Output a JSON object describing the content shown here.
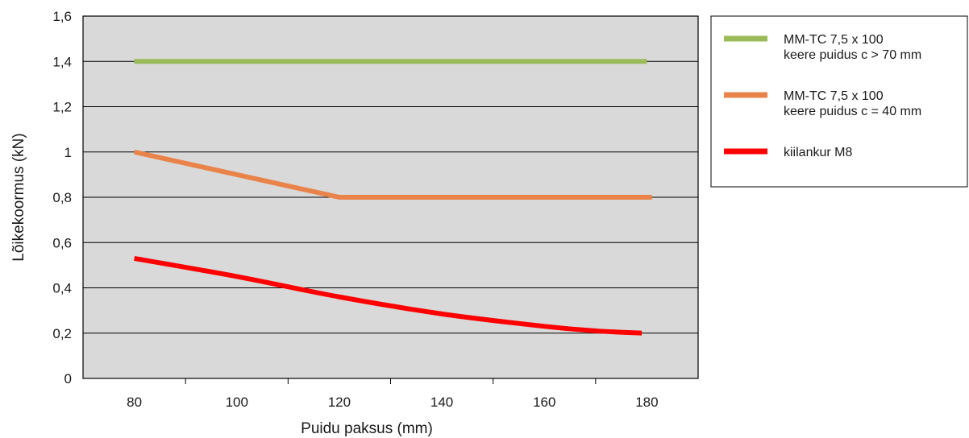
{
  "chart_data": {
    "type": "line",
    "xlabel": "Puidu paksus (mm)",
    "ylabel": "Lõikekoormus (kN)",
    "xlim": [
      70,
      190
    ],
    "ylim": [
      0,
      1.6
    ],
    "x_ticks": [
      "80",
      "100",
      "120",
      "140",
      "160",
      "180"
    ],
    "y_ticks": [
      "0",
      "0,2",
      "0,4",
      "0,6",
      "0,8",
      "1",
      "1,2",
      "1,4",
      "1,6"
    ],
    "grid": "horizontal",
    "plot_background": "#d9d9d9",
    "legend_position": "right",
    "series": [
      {
        "name_lines": [
          "MM-TC 7,5 x 100",
          "keere puidus c > 70 mm"
        ],
        "color": "#9bbb59",
        "x": [
          80,
          180
        ],
        "y": [
          1.4,
          1.4
        ]
      },
      {
        "name_lines": [
          "MM-TC 7,5 x 100",
          "keere puidus c = 40 mm"
        ],
        "color": "#e9834a",
        "x": [
          80,
          120,
          181
        ],
        "y": [
          1.0,
          0.8,
          0.8
        ]
      },
      {
        "name_lines": [
          "kiilankur M8"
        ],
        "color": "#ff0000",
        "x": [
          80,
          100,
          120,
          140,
          160,
          170,
          179
        ],
        "y": [
          0.53,
          0.45,
          0.36,
          0.285,
          0.23,
          0.21,
          0.2
        ]
      }
    ]
  }
}
